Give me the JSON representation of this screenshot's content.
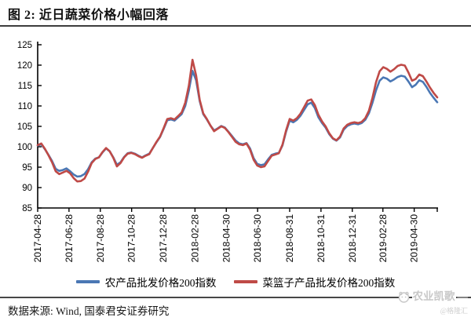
{
  "title": "图 2: 近日蔬菜价格小幅回落",
  "footer": {
    "source_label": "数据来源: Wind, 国泰君安证券研究"
  },
  "watermark": {
    "name": "农业凯歌",
    "credit": "@格隆汇",
    "color": "#c8c8c8"
  },
  "axis_color": "#000000",
  "chart_data": {
    "type": "line",
    "title": "图 2: 近日蔬菜价格小幅回落",
    "xlabel": "",
    "ylabel": "",
    "ylim": [
      85,
      125
    ],
    "y_ticks": [
      85,
      90,
      95,
      100,
      105,
      110,
      115,
      120,
      125
    ],
    "grid": false,
    "legend_position": "bottom",
    "x_description": "weekly observations from 2017-04-28 to 2019-06-14",
    "x_ticks": [
      {
        "label": "2017-04-28",
        "week": 0
      },
      {
        "label": "2017-06-28",
        "week": 8.7
      },
      {
        "label": "2017-08-28",
        "week": 17.4
      },
      {
        "label": "2017-10-28",
        "week": 26.1
      },
      {
        "label": "2017-12-28",
        "week": 34.9
      },
      {
        "label": "2018-02-28",
        "week": 43.7
      },
      {
        "label": "2018-04-30",
        "week": 52.4
      },
      {
        "label": "2018-06-30",
        "week": 61.1
      },
      {
        "label": "2018-08-31",
        "week": 70.0
      },
      {
        "label": "2018-10-31",
        "week": 78.7
      },
      {
        "label": "2018-12-31",
        "week": 87.4
      },
      {
        "label": "2019-02-28",
        "week": 95.9
      },
      {
        "label": "2019-04-30",
        "week": 104.6
      }
    ],
    "series": [
      {
        "id": "agri",
        "name": "农产品批发价格200指数",
        "color": "#4a77b4",
        "values": [
          100.3,
          100.6,
          99.4,
          98.0,
          96.5,
          94.6,
          94.1,
          94.3,
          94.7,
          94.0,
          93.2,
          92.7,
          92.8,
          93.3,
          94.5,
          96.2,
          97.1,
          97.4,
          98.6,
          99.6,
          98.9,
          97.4,
          95.6,
          96.2,
          97.5,
          98.4,
          98.6,
          98.3,
          97.8,
          97.4,
          97.9,
          98.3,
          99.7,
          101.1,
          102.4,
          104.4,
          106.5,
          106.7,
          106.4,
          107.2,
          108.0,
          110.0,
          113.8,
          118.6,
          116.3,
          111.2,
          108.0,
          106.7,
          105.2,
          104.0,
          104.5,
          105.1,
          104.7,
          103.7,
          102.6,
          101.5,
          100.8,
          100.6,
          100.9,
          99.6,
          97.2,
          95.8,
          95.5,
          95.7,
          96.9,
          98.0,
          98.3,
          98.5,
          100.3,
          103.7,
          106.4,
          106.0,
          106.6,
          107.6,
          109.0,
          110.4,
          110.8,
          109.5,
          107.2,
          105.8,
          104.7,
          103.1,
          102.0,
          101.5,
          102.3,
          104.2,
          105.1,
          105.5,
          105.7,
          105.5,
          105.8,
          106.6,
          108.2,
          110.8,
          113.8,
          116.2,
          117.0,
          116.7,
          116.0,
          116.5,
          117.1,
          117.4,
          117.2,
          116.0,
          114.6,
          115.2,
          116.3,
          115.9,
          114.7,
          113.2,
          112.0,
          110.9
        ]
      },
      {
        "id": "basket",
        "name": "菜篮子产品批发价格200指数",
        "color": "#bf4a47",
        "values": [
          100.4,
          100.8,
          99.5,
          97.9,
          96.2,
          94.0,
          93.3,
          93.7,
          94.1,
          93.5,
          92.3,
          91.5,
          91.6,
          92.2,
          93.9,
          96.0,
          97.0,
          97.4,
          98.7,
          99.7,
          98.9,
          97.3,
          95.2,
          96.0,
          97.4,
          98.3,
          98.5,
          98.2,
          97.7,
          97.3,
          97.8,
          98.2,
          99.7,
          101.2,
          102.5,
          104.6,
          106.8,
          107.0,
          106.7,
          107.5,
          108.4,
          110.8,
          115.0,
          121.3,
          117.5,
          111.5,
          108.2,
          106.8,
          105.2,
          103.8,
          104.4,
          105.0,
          104.6,
          103.6,
          102.4,
          101.2,
          100.6,
          100.4,
          100.8,
          99.3,
          96.8,
          95.4,
          95.0,
          95.2,
          96.5,
          97.8,
          98.1,
          98.4,
          100.5,
          104.0,
          106.8,
          106.4,
          107.0,
          108.1,
          109.7,
          111.3,
          111.6,
          110.2,
          107.8,
          106.2,
          105.0,
          103.3,
          102.1,
          101.6,
          102.5,
          104.5,
          105.4,
          105.8,
          106.0,
          105.8,
          106.1,
          107.0,
          108.8,
          112.0,
          115.8,
          118.5,
          119.5,
          119.1,
          118.4,
          119.0,
          119.8,
          120.1,
          119.9,
          118.2,
          116.2,
          116.6,
          117.7,
          117.3,
          116.0,
          114.5,
          113.2,
          112.1
        ]
      }
    ]
  }
}
